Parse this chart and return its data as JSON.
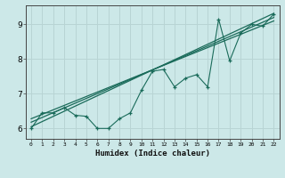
{
  "xlabel": "Humidex (Indice chaleur)",
  "xlim": [
    -0.5,
    22.5
  ],
  "ylim": [
    5.7,
    9.55
  ],
  "xticks": [
    0,
    1,
    2,
    3,
    4,
    5,
    6,
    7,
    8,
    9,
    10,
    11,
    12,
    13,
    14,
    15,
    16,
    17,
    18,
    19,
    20,
    21,
    22
  ],
  "yticks": [
    6,
    7,
    8,
    9
  ],
  "bg_color": "#cce8e8",
  "line_color": "#1a6b5a",
  "grid_color": "#b8d4d4",
  "data_x": [
    0,
    1,
    2,
    3,
    4,
    5,
    6,
    7,
    8,
    9,
    10,
    11,
    12,
    13,
    14,
    15,
    16,
    17,
    18,
    19,
    20,
    21,
    22
  ],
  "data_y": [
    6.0,
    6.45,
    6.45,
    6.6,
    6.38,
    6.35,
    6.0,
    6.0,
    6.28,
    6.45,
    7.1,
    7.65,
    7.7,
    7.2,
    7.45,
    7.55,
    7.2,
    9.15,
    7.95,
    8.75,
    9.0,
    8.95,
    9.3
  ],
  "line1_x": [
    0,
    22
  ],
  "line1_y": [
    6.05,
    9.32
  ],
  "line2_x": [
    0,
    22
  ],
  "line2_y": [
    6.18,
    9.2
  ],
  "line3_x": [
    0,
    22
  ],
  "line3_y": [
    6.28,
    9.1
  ]
}
